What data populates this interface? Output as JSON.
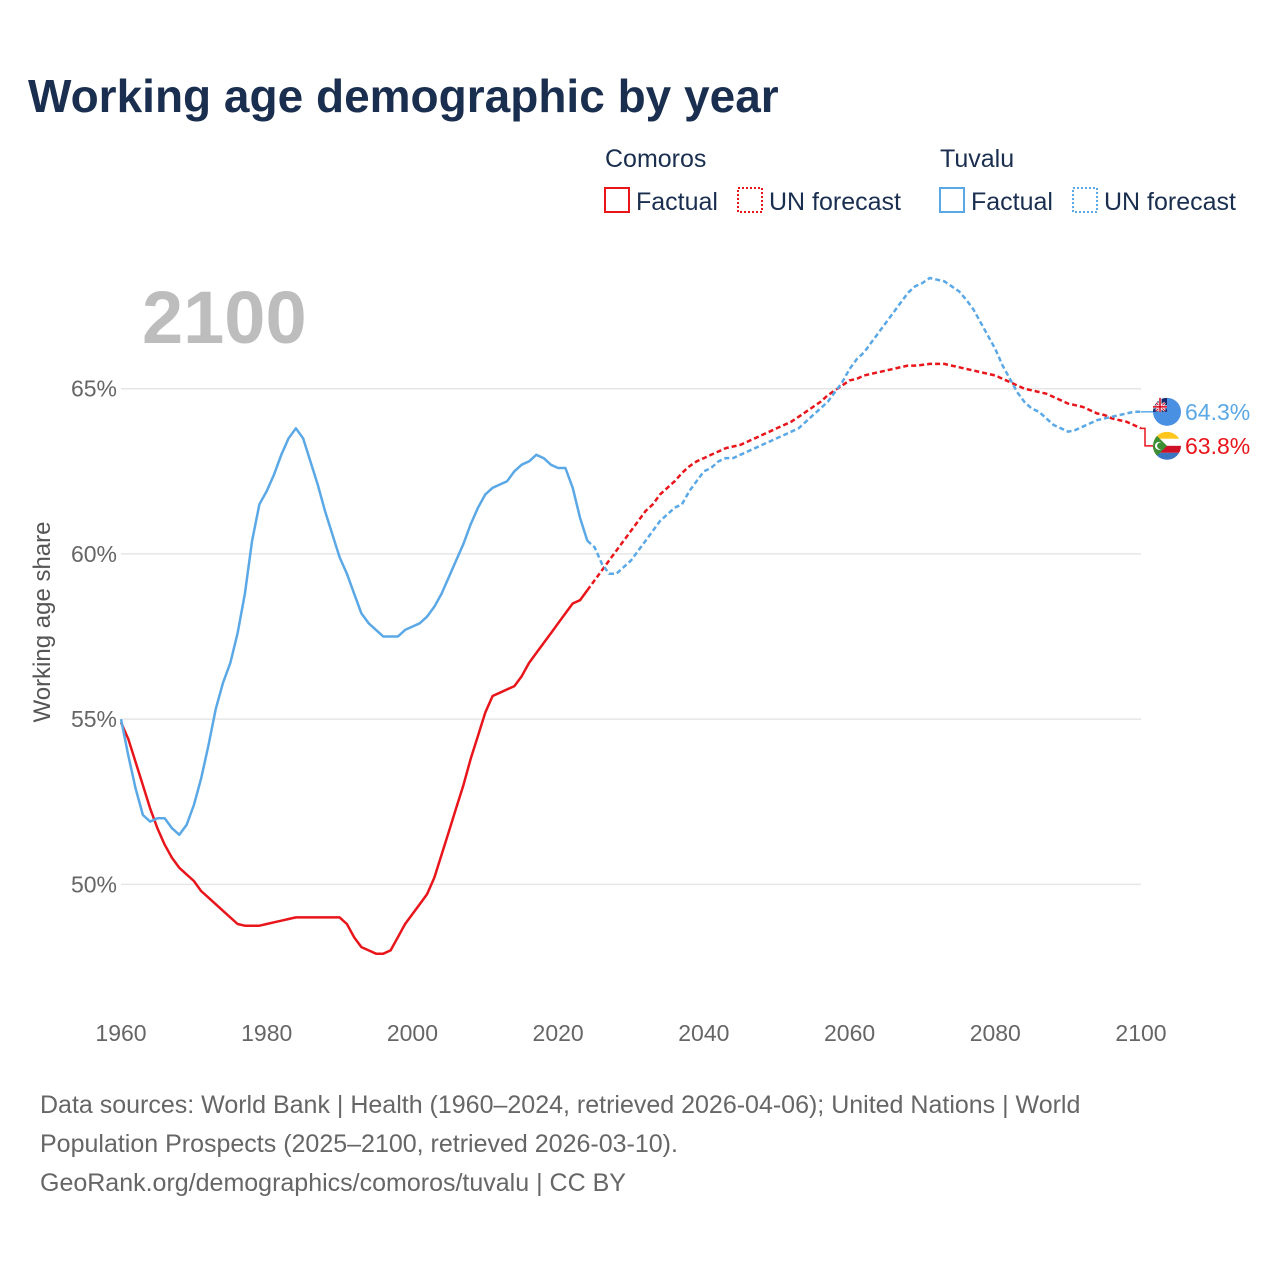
{
  "title": "Working age demographic by year",
  "year_overlay": "2100",
  "legend": {
    "groups": [
      {
        "country": "Comoros",
        "factual_label": "Factual",
        "forecast_label": "UN forecast",
        "color": "#e8151b"
      },
      {
        "country": "Tuvalu",
        "factual_label": "Factual",
        "forecast_label": "UN forecast",
        "color": "#5ba8e6"
      }
    ]
  },
  "end_labels": {
    "tuvalu": "64.3%",
    "comoros": "63.8%"
  },
  "source": {
    "line1": "Data sources: World Bank | Health (1960–2024, retrieved 2026-04-06); United Nations | World",
    "line2": "Population Prospects (2025–2100, retrieved 2026-03-10).",
    "line3": "GeoRank.org/demographics/comoros/tuvalu | CC BY"
  },
  "colors": {
    "title": "#1a2e4f",
    "comoros": "#e8151b",
    "tuvalu": "#5ba8e6",
    "axis_text": "#666666",
    "grid": "#e6e6e6",
    "overlay": "#bdbdbd"
  },
  "chart_data": {
    "type": "line",
    "title": "Working age demographic by year",
    "xlabel": "",
    "ylabel": "Working age share",
    "xlim": [
      1960,
      2100
    ],
    "ylim": [
      46.5,
      69.5
    ],
    "x_ticks": [
      1960,
      1980,
      2000,
      2020,
      2040,
      2060,
      2080,
      2100
    ],
    "y_ticks": [
      {
        "value": 50,
        "label": "50%"
      },
      {
        "value": 55,
        "label": "55%"
      },
      {
        "value": 60,
        "label": "60%"
      },
      {
        "value": 65,
        "label": "65%"
      }
    ],
    "factual_end_year": 2024,
    "series": [
      {
        "name": "Comoros",
        "color": "#e8151b",
        "end_label": "63.8%",
        "points": [
          [
            1960,
            54.9
          ],
          [
            1961,
            54.4
          ],
          [
            1962,
            53.7
          ],
          [
            1963,
            53.0
          ],
          [
            1964,
            52.3
          ],
          [
            1965,
            51.7
          ],
          [
            1966,
            51.2
          ],
          [
            1967,
            50.8
          ],
          [
            1968,
            50.5
          ],
          [
            1969,
            50.3
          ],
          [
            1970,
            50.1
          ],
          [
            1971,
            49.8
          ],
          [
            1972,
            49.6
          ],
          [
            1973,
            49.4
          ],
          [
            1974,
            49.2
          ],
          [
            1975,
            49.0
          ],
          [
            1976,
            48.8
          ],
          [
            1977,
            48.75
          ],
          [
            1978,
            48.75
          ],
          [
            1979,
            48.75
          ],
          [
            1980,
            48.8
          ],
          [
            1981,
            48.85
          ],
          [
            1982,
            48.9
          ],
          [
            1983,
            48.95
          ],
          [
            1984,
            49.0
          ],
          [
            1985,
            49.0
          ],
          [
            1986,
            49.0
          ],
          [
            1987,
            49.0
          ],
          [
            1988,
            49.0
          ],
          [
            1989,
            49.0
          ],
          [
            1990,
            49.0
          ],
          [
            1991,
            48.8
          ],
          [
            1992,
            48.4
          ],
          [
            1993,
            48.1
          ],
          [
            1994,
            48.0
          ],
          [
            1995,
            47.9
          ],
          [
            1996,
            47.9
          ],
          [
            1997,
            48.0
          ],
          [
            1998,
            48.4
          ],
          [
            1999,
            48.8
          ],
          [
            2000,
            49.1
          ],
          [
            2001,
            49.4
          ],
          [
            2002,
            49.7
          ],
          [
            2003,
            50.2
          ],
          [
            2004,
            50.9
          ],
          [
            2005,
            51.6
          ],
          [
            2006,
            52.3
          ],
          [
            2007,
            53.0
          ],
          [
            2008,
            53.8
          ],
          [
            2009,
            54.5
          ],
          [
            2010,
            55.2
          ],
          [
            2011,
            55.7
          ],
          [
            2012,
            55.8
          ],
          [
            2013,
            55.9
          ],
          [
            2014,
            56.0
          ],
          [
            2015,
            56.3
          ],
          [
            2016,
            56.7
          ],
          [
            2017,
            57.0
          ],
          [
            2018,
            57.3
          ],
          [
            2019,
            57.6
          ],
          [
            2020,
            57.9
          ],
          [
            2021,
            58.2
          ],
          [
            2022,
            58.5
          ],
          [
            2023,
            58.6
          ],
          [
            2024,
            58.9
          ],
          [
            2025,
            59.2
          ],
          [
            2026,
            59.5
          ],
          [
            2027,
            59.8
          ],
          [
            2028,
            60.1
          ],
          [
            2029,
            60.4
          ],
          [
            2030,
            60.7
          ],
          [
            2031,
            61.0
          ],
          [
            2032,
            61.3
          ],
          [
            2033,
            61.5
          ],
          [
            2034,
            61.8
          ],
          [
            2035,
            62.0
          ],
          [
            2036,
            62.2
          ],
          [
            2037,
            62.45
          ],
          [
            2038,
            62.65
          ],
          [
            2039,
            62.8
          ],
          [
            2040,
            62.9
          ],
          [
            2041,
            63.0
          ],
          [
            2042,
            63.1
          ],
          [
            2043,
            63.2
          ],
          [
            2044,
            63.25
          ],
          [
            2045,
            63.3
          ],
          [
            2046,
            63.4
          ],
          [
            2047,
            63.5
          ],
          [
            2048,
            63.6
          ],
          [
            2049,
            63.7
          ],
          [
            2050,
            63.8
          ],
          [
            2051,
            63.9
          ],
          [
            2052,
            64.0
          ],
          [
            2053,
            64.15
          ],
          [
            2054,
            64.3
          ],
          [
            2055,
            64.45
          ],
          [
            2056,
            64.6
          ],
          [
            2057,
            64.8
          ],
          [
            2058,
            64.95
          ],
          [
            2059,
            65.1
          ],
          [
            2060,
            65.25
          ],
          [
            2061,
            65.3
          ],
          [
            2062,
            65.4
          ],
          [
            2063,
            65.45
          ],
          [
            2064,
            65.5
          ],
          [
            2065,
            65.55
          ],
          [
            2066,
            65.6
          ],
          [
            2067,
            65.65
          ],
          [
            2068,
            65.7
          ],
          [
            2069,
            65.7
          ],
          [
            2070,
            65.72
          ],
          [
            2071,
            65.75
          ],
          [
            2072,
            65.75
          ],
          [
            2073,
            65.75
          ],
          [
            2074,
            65.7
          ],
          [
            2075,
            65.65
          ],
          [
            2076,
            65.6
          ],
          [
            2077,
            65.55
          ],
          [
            2078,
            65.5
          ],
          [
            2079,
            65.45
          ],
          [
            2080,
            65.4
          ],
          [
            2081,
            65.3
          ],
          [
            2082,
            65.2
          ],
          [
            2083,
            65.1
          ],
          [
            2084,
            65.0
          ],
          [
            2085,
            64.95
          ],
          [
            2086,
            64.9
          ],
          [
            2087,
            64.85
          ],
          [
            2088,
            64.75
          ],
          [
            2089,
            64.65
          ],
          [
            2090,
            64.55
          ],
          [
            2091,
            64.5
          ],
          [
            2092,
            64.45
          ],
          [
            2093,
            64.35
          ],
          [
            2094,
            64.25
          ],
          [
            2095,
            64.2
          ],
          [
            2096,
            64.1
          ],
          [
            2097,
            64.05
          ],
          [
            2098,
            64.0
          ],
          [
            2099,
            63.9
          ],
          [
            2100,
            63.8
          ]
        ]
      },
      {
        "name": "Tuvalu",
        "color": "#5ba8e6",
        "end_label": "64.3%",
        "points": [
          [
            1960,
            55.0
          ],
          [
            1961,
            53.9
          ],
          [
            1962,
            52.9
          ],
          [
            1963,
            52.1
          ],
          [
            1964,
            51.9
          ],
          [
            1965,
            52.0
          ],
          [
            1966,
            52.0
          ],
          [
            1967,
            51.7
          ],
          [
            1968,
            51.5
          ],
          [
            1969,
            51.8
          ],
          [
            1970,
            52.4
          ],
          [
            1971,
            53.2
          ],
          [
            1972,
            54.2
          ],
          [
            1973,
            55.3
          ],
          [
            1974,
            56.1
          ],
          [
            1975,
            56.7
          ],
          [
            1976,
            57.6
          ],
          [
            1977,
            58.8
          ],
          [
            1978,
            60.4
          ],
          [
            1979,
            61.5
          ],
          [
            1980,
            61.9
          ],
          [
            1981,
            62.4
          ],
          [
            1982,
            63.0
          ],
          [
            1983,
            63.5
          ],
          [
            1984,
            63.8
          ],
          [
            1985,
            63.5
          ],
          [
            1986,
            62.8
          ],
          [
            1987,
            62.1
          ],
          [
            1988,
            61.3
          ],
          [
            1989,
            60.6
          ],
          [
            1990,
            59.9
          ],
          [
            1991,
            59.4
          ],
          [
            1992,
            58.8
          ],
          [
            1993,
            58.2
          ],
          [
            1994,
            57.9
          ],
          [
            1995,
            57.7
          ],
          [
            1996,
            57.5
          ],
          [
            1997,
            57.5
          ],
          [
            1998,
            57.5
          ],
          [
            1999,
            57.7
          ],
          [
            2000,
            57.8
          ],
          [
            2001,
            57.9
          ],
          [
            2002,
            58.1
          ],
          [
            2003,
            58.4
          ],
          [
            2004,
            58.8
          ],
          [
            2005,
            59.3
          ],
          [
            2006,
            59.8
          ],
          [
            2007,
            60.3
          ],
          [
            2008,
            60.9
          ],
          [
            2009,
            61.4
          ],
          [
            2010,
            61.8
          ],
          [
            2011,
            62.0
          ],
          [
            2012,
            62.1
          ],
          [
            2013,
            62.2
          ],
          [
            2014,
            62.5
          ],
          [
            2015,
            62.7
          ],
          [
            2016,
            62.8
          ],
          [
            2017,
            63.0
          ],
          [
            2018,
            62.9
          ],
          [
            2019,
            62.7
          ],
          [
            2020,
            62.6
          ],
          [
            2021,
            62.6
          ],
          [
            2022,
            62.0
          ],
          [
            2023,
            61.1
          ],
          [
            2024,
            60.4
          ],
          [
            2025,
            60.2
          ],
          [
            2026,
            59.7
          ],
          [
            2027,
            59.4
          ],
          [
            2028,
            59.4
          ],
          [
            2029,
            59.6
          ],
          [
            2030,
            59.8
          ],
          [
            2031,
            60.1
          ],
          [
            2032,
            60.4
          ],
          [
            2033,
            60.7
          ],
          [
            2034,
            61.0
          ],
          [
            2035,
            61.2
          ],
          [
            2036,
            61.4
          ],
          [
            2037,
            61.5
          ],
          [
            2038,
            61.9
          ],
          [
            2039,
            62.2
          ],
          [
            2040,
            62.5
          ],
          [
            2041,
            62.6
          ],
          [
            2042,
            62.8
          ],
          [
            2043,
            62.9
          ],
          [
            2044,
            62.9
          ],
          [
            2045,
            63.0
          ],
          [
            2046,
            63.1
          ],
          [
            2047,
            63.2
          ],
          [
            2048,
            63.3
          ],
          [
            2049,
            63.4
          ],
          [
            2050,
            63.5
          ],
          [
            2051,
            63.6
          ],
          [
            2052,
            63.7
          ],
          [
            2053,
            63.8
          ],
          [
            2054,
            64.0
          ],
          [
            2055,
            64.2
          ],
          [
            2056,
            64.4
          ],
          [
            2057,
            64.6
          ],
          [
            2058,
            64.9
          ],
          [
            2059,
            65.2
          ],
          [
            2060,
            65.6
          ],
          [
            2061,
            65.9
          ],
          [
            2062,
            66.1
          ],
          [
            2063,
            66.4
          ],
          [
            2064,
            66.7
          ],
          [
            2065,
            67.0
          ],
          [
            2066,
            67.3
          ],
          [
            2067,
            67.6
          ],
          [
            2068,
            67.9
          ],
          [
            2069,
            68.1
          ],
          [
            2070,
            68.2
          ],
          [
            2071,
            68.35
          ],
          [
            2072,
            68.3
          ],
          [
            2073,
            68.25
          ],
          [
            2074,
            68.1
          ],
          [
            2075,
            67.95
          ],
          [
            2076,
            67.7
          ],
          [
            2077,
            67.4
          ],
          [
            2078,
            67.0
          ],
          [
            2079,
            66.6
          ],
          [
            2080,
            66.2
          ],
          [
            2081,
            65.7
          ],
          [
            2082,
            65.3
          ],
          [
            2083,
            64.9
          ],
          [
            2084,
            64.6
          ],
          [
            2085,
            64.4
          ],
          [
            2086,
            64.3
          ],
          [
            2087,
            64.1
          ],
          [
            2088,
            63.9
          ],
          [
            2089,
            63.8
          ],
          [
            2090,
            63.7
          ],
          [
            2091,
            63.75
          ],
          [
            2092,
            63.85
          ],
          [
            2093,
            63.95
          ],
          [
            2094,
            64.05
          ],
          [
            2095,
            64.1
          ],
          [
            2096,
            64.15
          ],
          [
            2097,
            64.2
          ],
          [
            2098,
            64.25
          ],
          [
            2099,
            64.3
          ],
          [
            2100,
            64.3
          ]
        ]
      }
    ]
  }
}
